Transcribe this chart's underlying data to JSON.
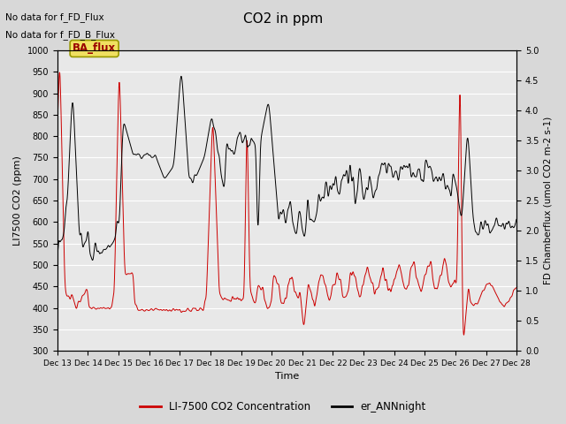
{
  "title": "CO2 in ppm",
  "xlabel": "Time",
  "ylabel_left": "LI7500 CO2 (ppm)",
  "ylabel_right": "FD Chamberflux (umol CO2 m-2 s-1)",
  "ylim_left": [
    300,
    1000
  ],
  "ylim_right": [
    0.0,
    5.0
  ],
  "yticks_left": [
    300,
    350,
    400,
    450,
    500,
    550,
    600,
    650,
    700,
    750,
    800,
    850,
    900,
    950,
    1000
  ],
  "yticks_right": [
    0.0,
    0.5,
    1.0,
    1.5,
    2.0,
    2.5,
    3.0,
    3.5,
    4.0,
    4.5,
    5.0
  ],
  "xtick_labels": [
    "Dec 13",
    "Dec 14",
    "Dec 15",
    "Dec 16",
    "Dec 17",
    "Dec 18",
    "Dec 19",
    "Dec 20",
    "Dec 21",
    "Dec 22",
    "Dec 23",
    "Dec 24",
    "Dec 25",
    "Dec 26",
    "Dec 27",
    "Dec 28"
  ],
  "text_no_data_1": "No data for f_FD_Flux",
  "text_no_data_2": "No data for f_FD_B_Flux",
  "ba_flux_label": "BA_flux",
  "legend_line1_label": "LI-7500 CO2 Concentration",
  "legend_line2_label": "er_ANNnight",
  "line1_color": "#cc0000",
  "line2_color": "#000000",
  "bg_color": "#d8d8d8",
  "plot_bg_color": "#e8e8e8",
  "grid_color": "#ffffff",
  "ba_flux_bg": "#f0e060",
  "ba_flux_border": "#999900",
  "n_points": 2000
}
